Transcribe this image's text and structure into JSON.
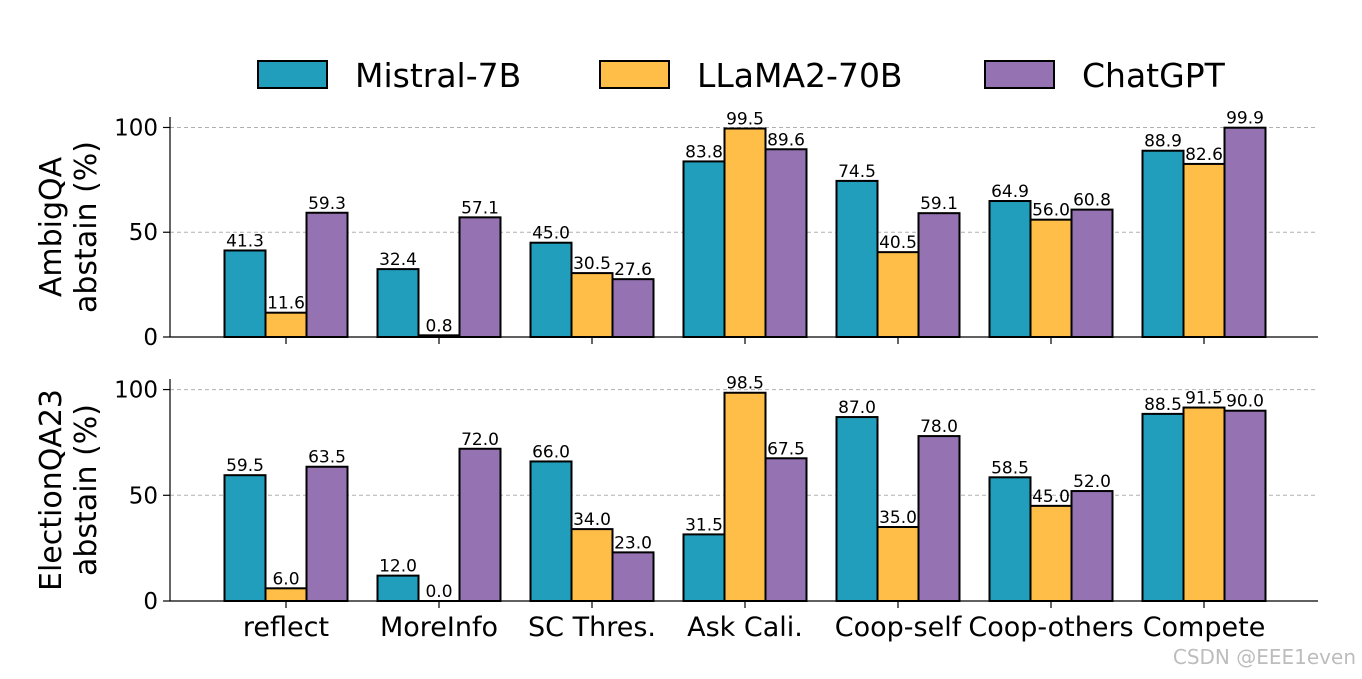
{
  "chart_data": {
    "type": "bar",
    "legend": [
      {
        "name": "Mistral-7B",
        "color": "#219ebc"
      },
      {
        "name": "LLaMA2-70B",
        "color": "#ffbe47"
      },
      {
        "name": "ChatGPT",
        "color": "#9573b3"
      }
    ],
    "categories": [
      "reflect",
      "MoreInfo",
      "SC Thres.",
      "Ask Cali.",
      "Coop-self",
      "Coop-others",
      "Compete"
    ],
    "panels": [
      {
        "ylabel_line1": "AmbigQA",
        "ylabel_line2": "abstain (%)",
        "ylim": [
          0,
          105
        ],
        "yticks": [
          "0",
          "50",
          "100"
        ],
        "series": [
          {
            "name": "Mistral-7B",
            "values": [
              41.3,
              32.4,
              45.0,
              83.8,
              74.5,
              64.9,
              88.9
            ],
            "labels": [
              "41.3",
              "32.4",
              "45.0",
              "83.8",
              "74.5",
              "64.9",
              "88.9"
            ]
          },
          {
            "name": "LLaMA2-70B",
            "values": [
              11.6,
              0.8,
              30.5,
              99.5,
              40.5,
              56.0,
              82.6
            ],
            "labels": [
              "11.6",
              "0.8",
              "30.5",
              "99.5",
              "40.5",
              "56.0",
              "82.6"
            ]
          },
          {
            "name": "ChatGPT",
            "values": [
              59.3,
              57.1,
              27.6,
              89.6,
              59.1,
              60.8,
              99.9
            ],
            "labels": [
              "59.3",
              "57.1",
              "27.6",
              "89.6",
              "59.1",
              "60.8",
              "99.9"
            ]
          }
        ]
      },
      {
        "ylabel_line1": "ElectionQA23",
        "ylabel_line2": "abstain (%)",
        "ylim": [
          0,
          105
        ],
        "yticks": [
          "0",
          "50",
          "100"
        ],
        "series": [
          {
            "name": "Mistral-7B",
            "values": [
              59.5,
              12.0,
              66.0,
              31.5,
              87.0,
              58.5,
              88.5
            ],
            "labels": [
              "59.5",
              "12.0",
              "66.0",
              "31.5",
              "87.0",
              "58.5",
              "88.5"
            ]
          },
          {
            "name": "LLaMA2-70B",
            "values": [
              6.0,
              0.0,
              34.0,
              98.5,
              35.0,
              45.0,
              91.5
            ],
            "labels": [
              "6.0",
              "0.0",
              "34.0",
              "98.5",
              "35.0",
              "45.0",
              "91.5"
            ]
          },
          {
            "name": "ChatGPT",
            "values": [
              63.5,
              72.0,
              23.0,
              67.5,
              78.0,
              52.0,
              90.0
            ],
            "labels": [
              "63.5",
              "72.0",
              "23.0",
              "67.5",
              "78.0",
              "52.0",
              "90.0"
            ]
          }
        ]
      }
    ]
  },
  "watermark": "CSDN @EEE1even"
}
